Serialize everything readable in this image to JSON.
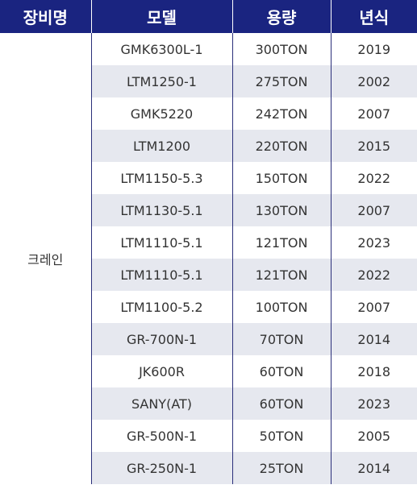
{
  "headers": [
    "장비명",
    "모델",
    "용량",
    "년식"
  ],
  "category": "크레인",
  "rows": [
    {
      "model": "GMK6300L-1",
      "capacity": "300TON",
      "year": "2019"
    },
    {
      "model": "LTM1250-1",
      "capacity": "275TON",
      "year": "2002"
    },
    {
      "model": "GMK5220",
      "capacity": "242TON",
      "year": "2007"
    },
    {
      "model": "LTM1200",
      "capacity": "220TON",
      "year": "2015"
    },
    {
      "model": "LTM1150-5.3",
      "capacity": "150TON",
      "year": "2022"
    },
    {
      "model": "LTM1130-5.1",
      "capacity": "130TON",
      "year": "2007"
    },
    {
      "model": "LTM1110-5.1",
      "capacity": "121TON",
      "year": "2023"
    },
    {
      "model": "LTM1110-5.1",
      "capacity": "121TON",
      "year": "2022"
    },
    {
      "model": "LTM1100-5.2",
      "capacity": "100TON",
      "year": "2007"
    },
    {
      "model": "GR-700N-1",
      "capacity": "70TON",
      "year": "2014"
    },
    {
      "model": "JK600R",
      "capacity": "60TON",
      "year": "2018"
    },
    {
      "model": "SANY(AT)",
      "capacity": "60TON",
      "year": "2023"
    },
    {
      "model": "GR-500N-1",
      "capacity": "50TON",
      "year": "2005"
    },
    {
      "model": "GR-250N-1",
      "capacity": "25TON",
      "year": "2014"
    }
  ]
}
